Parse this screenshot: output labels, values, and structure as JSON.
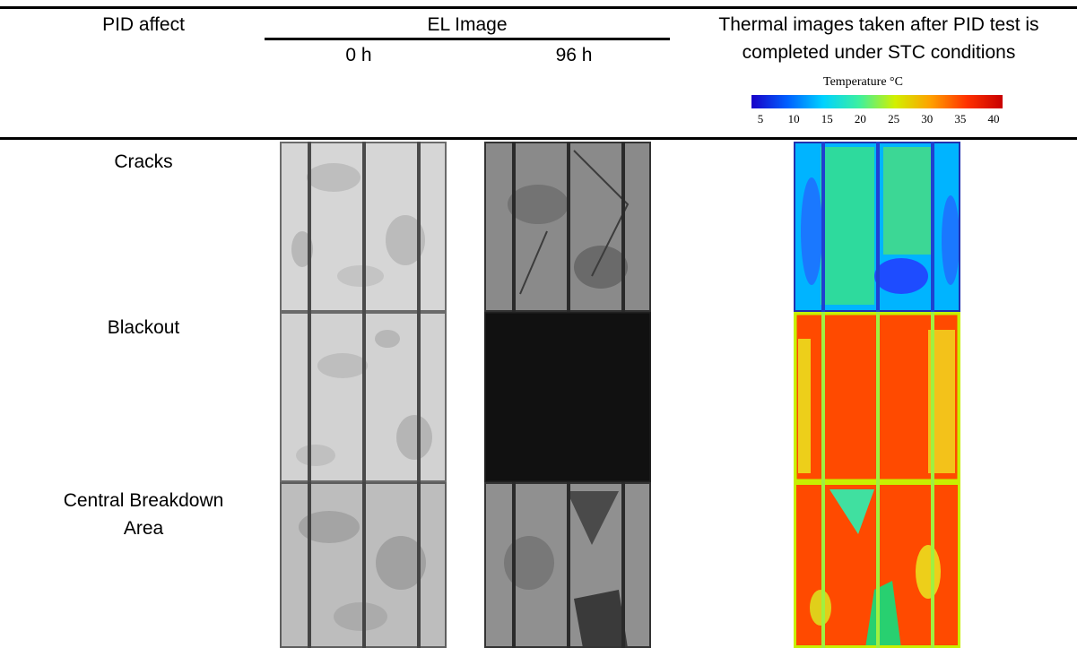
{
  "table": {
    "headers": {
      "pid_affect": "PID affect",
      "el_image": "EL Image",
      "el_0h": "0 h",
      "el_96h": "96 h",
      "thermal_line1": "Thermal images taken after PID test is",
      "thermal_line2": "completed under STC conditions"
    },
    "colorbar": {
      "title": "Temperature °C",
      "ticks": [
        "5",
        "10",
        "15",
        "20",
        "25",
        "30",
        "35",
        "40"
      ],
      "colors": [
        "#1a00c8",
        "#0060ff",
        "#00d2ff",
        "#3cf0a0",
        "#d2f000",
        "#ffa000",
        "#ff3200",
        "#c80000"
      ]
    },
    "rows": [
      {
        "label_line1": "Cracks",
        "label_line2": ""
      },
      {
        "label_line1": "Blackout",
        "label_line2": ""
      },
      {
        "label_line1": "Central Breakdown",
        "label_line2": "Area"
      }
    ]
  }
}
